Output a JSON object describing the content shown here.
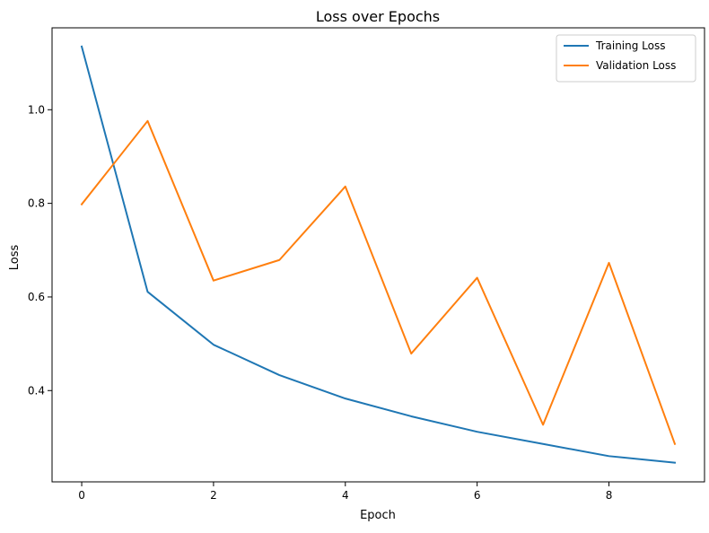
{
  "chart_data": {
    "type": "line",
    "title": "Loss over Epochs",
    "xlabel": "Epoch",
    "ylabel": "Loss",
    "x": [
      0,
      1,
      2,
      3,
      4,
      5,
      6,
      7,
      8,
      9
    ],
    "xlim": [
      -0.45,
      9.45
    ],
    "ylim": [
      0.205,
      1.175
    ],
    "xticks": [
      0,
      2,
      4,
      6,
      8
    ],
    "yticks": [
      0.4,
      0.6,
      0.8,
      1.0
    ],
    "xtick_labels": [
      "0",
      "2",
      "4",
      "6",
      "8"
    ],
    "ytick_labels": [
      "0.4",
      "0.6",
      "0.8",
      "1.0"
    ],
    "grid": false,
    "legend_position": "top-right",
    "series": [
      {
        "name": "Training Loss",
        "color": "#1f77b4",
        "values": [
          1.135,
          0.611,
          0.498,
          0.433,
          0.383,
          0.345,
          0.312,
          0.286,
          0.26,
          0.246
        ]
      },
      {
        "name": "Validation Loss",
        "color": "#ff7f0e",
        "values": [
          0.798,
          0.976,
          0.635,
          0.679,
          0.836,
          0.479,
          0.641,
          0.327,
          0.673,
          0.286
        ]
      }
    ]
  }
}
